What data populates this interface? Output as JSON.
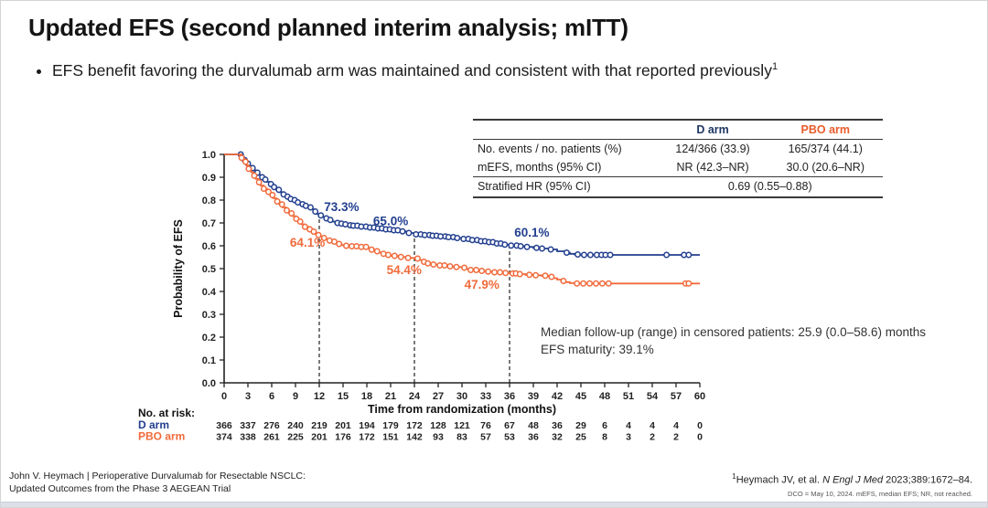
{
  "slide": {
    "title": "Updated EFS (second planned interim analysis; mITT)",
    "bullet_text": "EFS benefit favoring the durvalumab arm was maintained and consistent with that reported previously",
    "bullet_superscript": "1"
  },
  "stats_table": {
    "col_headers": [
      "D arm",
      "PBO arm"
    ],
    "rows": [
      {
        "label": "No. events / no. patients (%)",
        "d": "124/366 (33.9)",
        "pbo": "165/374 (44.1)"
      },
      {
        "label": "mEFS, months (95% CI)",
        "d": "NR (42.3–NR)",
        "pbo": "30.0 (20.6–NR)"
      },
      {
        "label": "Stratified HR (95% CI)",
        "span": "0.69 (0.55–0.88)"
      }
    ]
  },
  "chart_data": {
    "type": "line",
    "subtype": "kaplan-meier-step",
    "title": "",
    "xlabel": "Time from randomization (months)",
    "ylabel": "Probability of EFS",
    "xlim": [
      0,
      60
    ],
    "ylim": [
      0,
      1
    ],
    "xticks": [
      0,
      3,
      6,
      9,
      12,
      15,
      18,
      21,
      24,
      27,
      30,
      33,
      36,
      39,
      42,
      45,
      48,
      51,
      54,
      57,
      60
    ],
    "ytick_step": 0.1,
    "grid": false,
    "legend_position": "none",
    "dashed_lines": [
      {
        "t": 12,
        "top": 0.733
      },
      {
        "t": 24,
        "top": 0.65
      },
      {
        "t": 36,
        "top": 0.601
      }
    ],
    "landmark_estimates": {
      "D arm": {
        "12mo": 73.3,
        "24mo": 65.0,
        "36mo": 60.1
      },
      "PBO arm": {
        "12mo": 64.1,
        "24mo": 54.4,
        "36mo": 47.9
      }
    },
    "series": [
      {
        "name": "D arm",
        "color": "#223F8F",
        "steps": [
          [
            0,
            1.0
          ],
          [
            1.9,
            1.0
          ],
          [
            2.2,
            0.99
          ],
          [
            2.5,
            0.975
          ],
          [
            2.8,
            0.96
          ],
          [
            3.1,
            0.95
          ],
          [
            3.4,
            0.94
          ],
          [
            3.7,
            0.93
          ],
          [
            4,
            0.92
          ],
          [
            4.3,
            0.91
          ],
          [
            4.6,
            0.9
          ],
          [
            5,
            0.89
          ],
          [
            5.4,
            0.88
          ],
          [
            5.8,
            0.87
          ],
          [
            6.2,
            0.857
          ],
          [
            6.6,
            0.845
          ],
          [
            7,
            0.835
          ],
          [
            7.4,
            0.825
          ],
          [
            7.8,
            0.815
          ],
          [
            8.2,
            0.805
          ],
          [
            8.6,
            0.8
          ],
          [
            9,
            0.79
          ],
          [
            9.5,
            0.782
          ],
          [
            10,
            0.775
          ],
          [
            10.5,
            0.768
          ],
          [
            11,
            0.76
          ],
          [
            11.4,
            0.75
          ],
          [
            11.7,
            0.74
          ],
          [
            12,
            0.733
          ],
          [
            12.4,
            0.726
          ],
          [
            12.8,
            0.72
          ],
          [
            13.2,
            0.713
          ],
          [
            13.6,
            0.706
          ],
          [
            14,
            0.7
          ],
          [
            14.5,
            0.697
          ],
          [
            15,
            0.694
          ],
          [
            15.5,
            0.69
          ],
          [
            16,
            0.688
          ],
          [
            17,
            0.684
          ],
          [
            18,
            0.68
          ],
          [
            19,
            0.676
          ],
          [
            20,
            0.672
          ],
          [
            21,
            0.668
          ],
          [
            22,
            0.663
          ],
          [
            23,
            0.656
          ],
          [
            24,
            0.65
          ],
          [
            25,
            0.647
          ],
          [
            26,
            0.644
          ],
          [
            27,
            0.641
          ],
          [
            28,
            0.638
          ],
          [
            29,
            0.634
          ],
          [
            30,
            0.63
          ],
          [
            31,
            0.625
          ],
          [
            32,
            0.62
          ],
          [
            33,
            0.616
          ],
          [
            34,
            0.61
          ],
          [
            35,
            0.605
          ],
          [
            36,
            0.601
          ],
          [
            37,
            0.598
          ],
          [
            38,
            0.595
          ],
          [
            39,
            0.591
          ],
          [
            40,
            0.588
          ],
          [
            41,
            0.584
          ],
          [
            42,
            0.576
          ],
          [
            43,
            0.57
          ],
          [
            43.6,
            0.565
          ],
          [
            44.2,
            0.562
          ],
          [
            45,
            0.56
          ],
          [
            60,
            0.56
          ]
        ],
        "censor_times": [
          2.1,
          2.6,
          3.0,
          3.6,
          4.2,
          4.8,
          5.2,
          5.9,
          6.3,
          6.9,
          7.5,
          8.0,
          8.4,
          8.9,
          9.3,
          9.9,
          10.3,
          10.9,
          11.5,
          12.2,
          12.9,
          13.4,
          14.3,
          14.8,
          15.3,
          15.9,
          16.3,
          16.8,
          17.3,
          17.9,
          18.4,
          18.9,
          19.4,
          19.9,
          20.4,
          20.9,
          21.4,
          21.9,
          22.5,
          23.3,
          24.2,
          24.8,
          25.3,
          25.9,
          26.3,
          26.8,
          27.3,
          27.9,
          28.3,
          28.9,
          29.4,
          30.2,
          30.8,
          31.3,
          31.9,
          32.4,
          32.9,
          33.4,
          33.9,
          34.4,
          34.9,
          35.4,
          36.2,
          36.9,
          37.4,
          38.2,
          39.4,
          40.1,
          41.2,
          43.2,
          44.6,
          45.4,
          46.2,
          47.0,
          47.6,
          48.1,
          48.7,
          55.8,
          58.0,
          58.6
        ],
        "labels": [
          {
            "text": "73.3%",
            "t": 12.6,
            "p": 0.752
          },
          {
            "text": "65.0%",
            "t": 18.8,
            "p": 0.69
          },
          {
            "text": "60.1%",
            "t": 36.6,
            "p": 0.64
          }
        ]
      },
      {
        "name": "PBO arm",
        "color": "#F16A3B",
        "steps": [
          [
            0,
            1.0
          ],
          [
            1.9,
            1.0
          ],
          [
            2.2,
            0.985
          ],
          [
            2.5,
            0.968
          ],
          [
            2.8,
            0.952
          ],
          [
            3.1,
            0.937
          ],
          [
            3.4,
            0.922
          ],
          [
            3.7,
            0.907
          ],
          [
            4,
            0.893
          ],
          [
            4.3,
            0.878
          ],
          [
            4.6,
            0.864
          ],
          [
            5,
            0.85
          ],
          [
            5.4,
            0.836
          ],
          [
            5.8,
            0.822
          ],
          [
            6.2,
            0.808
          ],
          [
            6.6,
            0.794
          ],
          [
            7,
            0.781
          ],
          [
            7.4,
            0.768
          ],
          [
            7.8,
            0.755
          ],
          [
            8.2,
            0.742
          ],
          [
            8.6,
            0.73
          ],
          [
            9,
            0.718
          ],
          [
            9.4,
            0.706
          ],
          [
            9.8,
            0.694
          ],
          [
            10.2,
            0.683
          ],
          [
            10.6,
            0.672
          ],
          [
            11,
            0.662
          ],
          [
            11.4,
            0.653
          ],
          [
            11.7,
            0.647
          ],
          [
            12,
            0.641
          ],
          [
            12.4,
            0.634
          ],
          [
            12.8,
            0.628
          ],
          [
            13.2,
            0.623
          ],
          [
            13.6,
            0.618
          ],
          [
            14,
            0.613
          ],
          [
            14.4,
            0.608
          ],
          [
            14.8,
            0.603
          ],
          [
            15.2,
            0.6
          ],
          [
            16,
            0.598
          ],
          [
            17,
            0.595
          ],
          [
            18,
            0.59
          ],
          [
            18.5,
            0.583
          ],
          [
            19,
            0.576
          ],
          [
            19.5,
            0.57
          ],
          [
            20,
            0.565
          ],
          [
            20.5,
            0.56
          ],
          [
            21,
            0.556
          ],
          [
            22,
            0.551
          ],
          [
            23,
            0.547
          ],
          [
            24,
            0.544
          ],
          [
            24.5,
            0.538
          ],
          [
            25,
            0.53
          ],
          [
            25.5,
            0.523
          ],
          [
            26,
            0.518
          ],
          [
            27,
            0.514
          ],
          [
            28,
            0.51
          ],
          [
            29,
            0.507
          ],
          [
            30,
            0.504
          ],
          [
            30.5,
            0.499
          ],
          [
            31,
            0.494
          ],
          [
            32,
            0.49
          ],
          [
            33,
            0.487
          ],
          [
            34,
            0.484
          ],
          [
            35,
            0.481
          ],
          [
            36,
            0.479
          ],
          [
            37,
            0.476
          ],
          [
            38,
            0.473
          ],
          [
            39,
            0.471
          ],
          [
            40,
            0.469
          ],
          [
            41,
            0.464
          ],
          [
            41.5,
            0.458
          ],
          [
            42,
            0.452
          ],
          [
            42.5,
            0.446
          ],
          [
            43,
            0.441
          ],
          [
            43.6,
            0.437
          ],
          [
            44.2,
            0.435
          ],
          [
            60,
            0.435
          ]
        ],
        "censor_times": [
          2.2,
          2.7,
          3.1,
          3.8,
          4.4,
          5.0,
          5.6,
          6.1,
          6.7,
          7.3,
          7.9,
          8.5,
          9.1,
          9.6,
          10.2,
          10.8,
          11.3,
          11.9,
          12.6,
          13.3,
          13.9,
          14.5,
          15.4,
          16.1,
          16.7,
          17.3,
          17.9,
          18.6,
          19.3,
          20.1,
          20.7,
          21.5,
          22.3,
          23.2,
          24.4,
          25.2,
          25.7,
          26.4,
          27.2,
          27.8,
          28.5,
          29.3,
          30.3,
          31.1,
          31.8,
          32.5,
          33.3,
          34.1,
          34.8,
          35.5,
          36.4,
          36.8,
          37.3,
          38.5,
          39.3,
          40.5,
          41.3,
          42.8,
          44.5,
          45.3,
          46.1,
          46.9,
          47.7,
          48.5,
          58.2,
          58.6
        ],
        "labels": [
          {
            "text": "64.1%",
            "t": 8.3,
            "p": 0.597
          },
          {
            "text": "54.4%",
            "t": 20.5,
            "p": 0.477
          },
          {
            "text": "47.9%",
            "t": 30.3,
            "p": 0.412
          }
        ]
      }
    ],
    "annotations": [
      "Median follow-up (range) in censored patients: 25.9 (0.0–58.6) months",
      "EFS maturity: 39.1%"
    ],
    "at_risk": {
      "header": "No. at risk:",
      "times": [
        0,
        3,
        6,
        9,
        12,
        15,
        18,
        21,
        24,
        27,
        30,
        33,
        36,
        39,
        42,
        45,
        48,
        51,
        54,
        57,
        60
      ],
      "rows": [
        {
          "label": "D arm",
          "color": "#223F8F",
          "values": [
            366,
            337,
            276,
            240,
            219,
            201,
            194,
            179,
            172,
            128,
            121,
            76,
            67,
            48,
            36,
            29,
            6,
            4,
            4,
            4,
            0
          ]
        },
        {
          "label": "PBO arm",
          "color": "#F16A3B",
          "values": [
            374,
            338,
            261,
            225,
            201,
            176,
            172,
            151,
            142,
            93,
            83,
            57,
            53,
            36,
            32,
            25,
            8,
            3,
            2,
            2,
            0
          ]
        }
      ]
    }
  },
  "footer": {
    "left_line1": "John V. Heymach | Perioperative Durvalumab for Resectable NSCLC:",
    "left_line2": "Updated Outcomes from the Phase 3 AEGEAN Trial",
    "footnote_marker": "1",
    "footnote_prefix": "Heymach JV, et al. ",
    "footnote_journal": "N Engl J Med",
    "footnote_suffix": " 2023;389:1672–84.",
    "abbreviations": "DCO = May 10, 2024. mEFS, median EFS; NR, not reached."
  }
}
